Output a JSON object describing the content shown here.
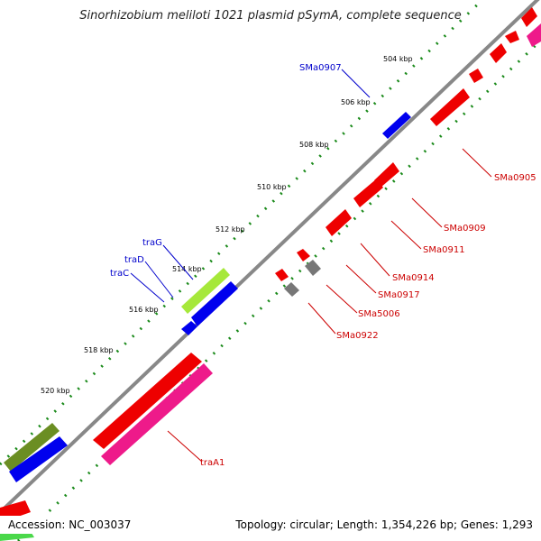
{
  "title": "Sinorhizobium meliloti 1021 plasmid pSymA, complete sequence",
  "footer": {
    "accession": "Accession: NC_003037",
    "topology": "Topology: circular; Length: 1,354,226 bp; Genes: 1,293"
  },
  "ticks": [
    "504 kbp",
    "506 kbp",
    "508 kbp",
    "510 kbp",
    "512 kbp",
    "514 kbp",
    "516 kbp",
    "518 kbp",
    "520 kbp"
  ],
  "gene_labels": {
    "SMa0907": "SMa0907",
    "traG": "traG",
    "traD": "traD",
    "traC": "traC",
    "SMa0905": "SMa0905",
    "SMa0909": "SMa0909",
    "SMa0911": "SMa0911",
    "SMa0914": "SMa0914",
    "SMa0917": "SMa0917",
    "SMa5006": "SMa5006",
    "SMa0922": "SMa0922",
    "traA1": "traA1"
  },
  "colors": {
    "forward_label": "#0000cc",
    "reverse_label": "#cc0000",
    "gene_blue": "#0000ee",
    "gene_red": "#ee0000",
    "gene_magenta": "#ee1a8a",
    "gene_lightgreen": "#a6e83a",
    "gene_olive": "#6b8e23",
    "gene_gray": "#777777",
    "track_green": "#1a8a1a",
    "backbone": "#888888"
  }
}
